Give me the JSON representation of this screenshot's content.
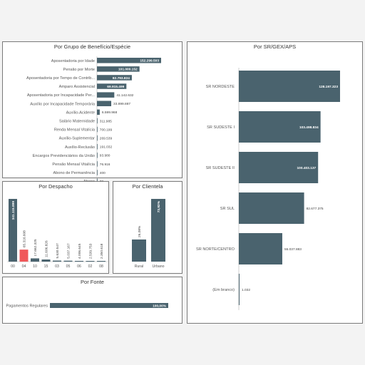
{
  "colors": {
    "bar": "#4a636e",
    "highlight": "#f0585a",
    "axis": "#b0b0b0"
  },
  "chart_data": [
    {
      "id": "grupo",
      "type": "bar",
      "orientation": "horizontal",
      "title": "Por Grupo de Benefício/Espécie",
      "categories": [
        "Aposentadoria por Idade",
        "Pensão por Morte",
        "Aposentadoria por Tempo de Contrib...",
        "Amparo Assistencial",
        "Aposentadoria por Incapacidade Per...",
        "Auxílio por Incapacidade Temporária",
        "Auxílio-Acidente",
        "Salário Maternidade",
        "Renda Mensal Vitalícia",
        "Auxílio-Suplementar",
        "Auxílio-Reclusão",
        "Encargos Previdenciários da União",
        "Pensão Mensal Vitalícia",
        "Abono de Permanência",
        "Abono"
      ],
      "values": [
        152299503,
        101000152,
        82793824,
        69915499,
        41142632,
        33899887,
        6599968,
        311985,
        700199,
        269539,
        191032,
        93980,
        76916,
        400,
        72
      ],
      "labels": [
        "152.299.503",
        "101.000.152",
        "82.793.824",
        "69.915.499",
        "41.142.632",
        "33.899.887",
        "6.599.968",
        "311.985",
        "700.199",
        "269.539",
        "191.032",
        "93.980",
        "76.916",
        "400",
        "72"
      ]
    },
    {
      "id": "despacho",
      "type": "bar",
      "orientation": "vertical",
      "title": "Por Despacho",
      "categories": [
        "00",
        "04",
        "10",
        "15",
        "03",
        "05",
        "06",
        "02",
        "08"
      ],
      "values": [
        341115899,
        65316608,
        17662325,
        11606826,
        5630547,
        5037167,
        4006645,
        2539753,
        2350618
      ],
      "labels": [
        "341.115.899",
        "65.316.608",
        "17.662.325",
        "11.606.826",
        "5.630.547",
        "5.037.167",
        "4.006.645",
        "2.539.753",
        "2.350.618"
      ],
      "highlight_index": 1
    },
    {
      "id": "clientela",
      "type": "bar",
      "orientation": "vertical",
      "title": "Por Clientela",
      "categories": [
        "Rural",
        "Urbano"
      ],
      "values": [
        26.08,
        73.92
      ],
      "labels": [
        "26,08%",
        "73,92%"
      ]
    },
    {
      "id": "fonte",
      "type": "bar",
      "orientation": "horizontal",
      "title": "Por Fonte",
      "categories": [
        "Pagamentos Regulares"
      ],
      "values": [
        100
      ],
      "labels": [
        "100,00%"
      ]
    },
    {
      "id": "sr",
      "type": "bar",
      "orientation": "horizontal",
      "title": "Por SR/GEX/APS",
      "categories": [
        "SR NORDESTE",
        "SR SUDESTE I",
        "SR SUDESTE II",
        "SR SUL",
        "SR NORTE/CENTRO",
        "(Em branco)"
      ],
      "values": [
        128197323,
        103498834,
        100403137,
        82677375,
        55037883,
        1032
      ],
      "labels": [
        "128.197.323",
        "103.498.834",
        "100.403.137",
        "82.677.375",
        "55.037.883",
        "1.032"
      ]
    }
  ]
}
